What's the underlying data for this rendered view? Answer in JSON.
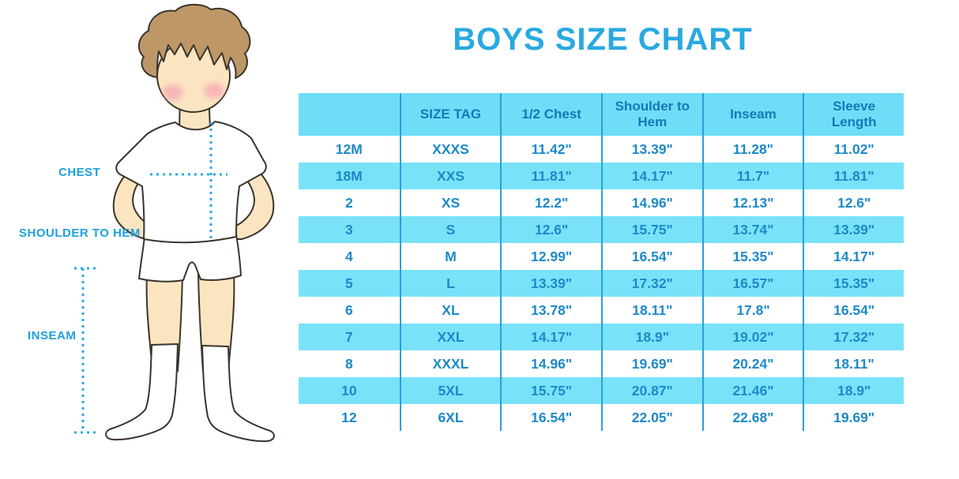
{
  "title": "BOYS SIZE CHART",
  "figure_labels": {
    "chest": "CHEST",
    "shoulder_to_hem": "SHOULDER TO HEM",
    "inseam": "INSEAM"
  },
  "chart_data": {
    "type": "table",
    "title": "BOYS SIZE CHART",
    "columns": [
      "",
      "SIZE TAG",
      "1/2 Chest",
      "Shoulder to Hem",
      "Inseam",
      "Sleeve Length"
    ],
    "rows": [
      [
        "12M",
        "XXXS",
        "11.42\"",
        "13.39\"",
        "11.28\"",
        "11.02\""
      ],
      [
        "18M",
        "XXS",
        "11.81\"",
        "14.17\"",
        "11.7\"",
        "11.81\""
      ],
      [
        "2",
        "XS",
        "12.2\"",
        "14.96\"",
        "12.13\"",
        "12.6\""
      ],
      [
        "3",
        "S",
        "12.6\"",
        "15.75\"",
        "13.74\"",
        "13.39\""
      ],
      [
        "4",
        "M",
        "12.99\"",
        "16.54\"",
        "15.35\"",
        "14.17\""
      ],
      [
        "5",
        "L",
        "13.39\"",
        "17.32\"",
        "16.57\"",
        "15.35\""
      ],
      [
        "6",
        "XL",
        "13.78\"",
        "18.11\"",
        "17.8\"",
        "16.54\""
      ],
      [
        "7",
        "XXL",
        "14.17\"",
        "18.9\"",
        "19.02\"",
        "17.32\""
      ],
      [
        "8",
        "XXXL",
        "14.96\"",
        "19.69\"",
        "20.24\"",
        "18.11\""
      ],
      [
        "10",
        "5XL",
        "15.75\"",
        "20.87\"",
        "21.46\"",
        "18.9\""
      ],
      [
        "12",
        "6XL",
        "16.54\"",
        "22.05\"",
        "22.68\"",
        "19.69\""
      ]
    ],
    "row_striping": [
      "white",
      "light-blue alternating"
    ],
    "legend_position": "none",
    "grid": "vertical separators only"
  },
  "colors": {
    "accent_blue": "#29A9E1",
    "table_fill_blue": "#74DFF8",
    "table_line_blue": "#2BA0D6",
    "table_text_blue": "#1C89C8",
    "header_text_blue": "#1478B8",
    "skin": "#FBE5C1",
    "hair": "#BE9768"
  }
}
